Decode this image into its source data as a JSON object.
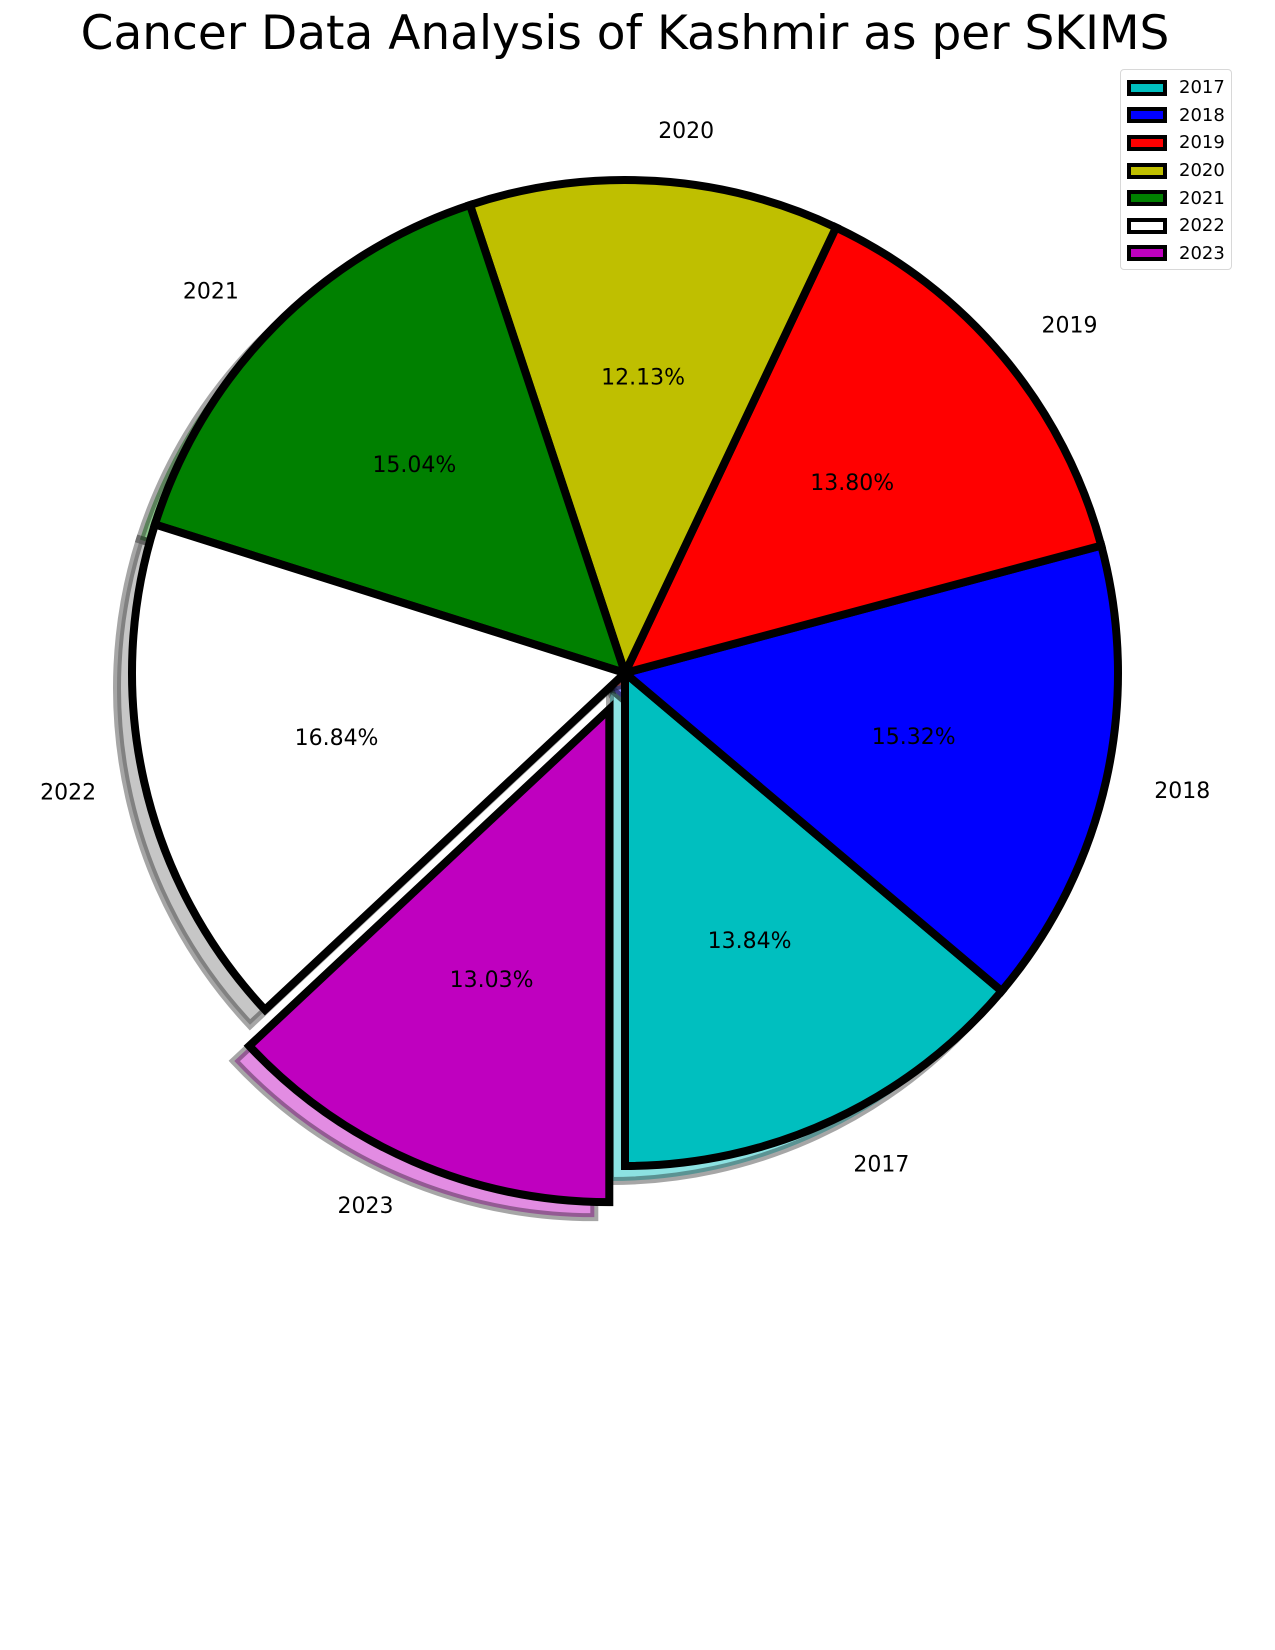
{
  "chart_data": {
    "type": "pie",
    "title": "Cancer Data Analysis of Kashmir as per SKIMS",
    "legend_position": "top-right",
    "exploded": "2023",
    "shadow": true,
    "slices": [
      {
        "label": "2017",
        "value": 13.84,
        "pct_label": "13.84%",
        "color": "#00bfbf"
      },
      {
        "label": "2018",
        "value": 15.32,
        "pct_label": "15.32%",
        "color": "#0000ff"
      },
      {
        "label": "2019",
        "value": 13.8,
        "pct_label": "13.80%",
        "color": "#ff0000"
      },
      {
        "label": "2020",
        "value": 12.13,
        "pct_label": "12.13%",
        "color": "#bfbf00"
      },
      {
        "label": "2021",
        "value": 15.04,
        "pct_label": "15.04%",
        "color": "#008000"
      },
      {
        "label": "2022",
        "value": 16.84,
        "pct_label": "16.84%",
        "color": "#ffffff"
      },
      {
        "label": "2023",
        "value": 13.03,
        "pct_label": "13.03%",
        "color": "#bf00bf"
      }
    ]
  }
}
